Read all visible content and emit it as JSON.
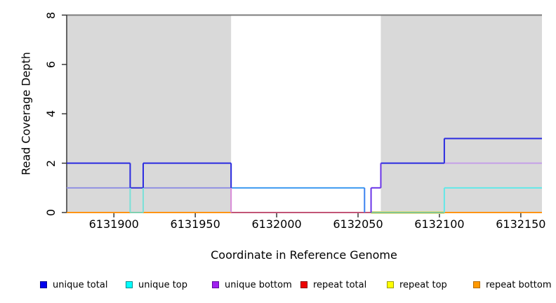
{
  "chart_data": {
    "type": "line",
    "subtype": "step-coverage",
    "title": "",
    "xlabel": "Coordinate in Reference Genome",
    "ylabel": "Read Coverage Depth",
    "xlim": [
      6131871,
      6132163
    ],
    "ylim": [
      0,
      8
    ],
    "xticks": [
      6131900,
      6131950,
      6132000,
      6132050,
      6132100,
      6132150
    ],
    "xtick_labels": [
      "6131900",
      "6131950",
      "6132000",
      "6132050",
      "6132100",
      "6132150"
    ],
    "yticks": [
      0,
      2,
      4,
      6,
      8
    ],
    "ytick_labels": [
      "0",
      "2",
      "4",
      "6",
      "8"
    ],
    "grid": false,
    "legend_position": "bottom-horizontal",
    "shade_color": "#d9d9d9",
    "shaded_regions": [
      {
        "x1": 6131871,
        "x2": 6131972
      },
      {
        "x1": 6132064,
        "x2": 6132163
      }
    ],
    "top_boundary_line": {
      "y": 8,
      "color": "#7d7d7d"
    },
    "series": [
      {
        "name": "unique total",
        "color": "#0000ee",
        "points": [
          [
            6131871,
            2
          ],
          [
            6131910,
            2
          ],
          [
            6131910,
            1
          ],
          [
            6131918,
            1
          ],
          [
            6131918,
            2
          ],
          [
            6131972,
            2
          ],
          [
            6131972,
            1
          ],
          [
            6132054,
            1
          ],
          [
            6132054,
            0
          ],
          [
            6132058,
            0
          ],
          [
            6132058,
            1
          ],
          [
            6132064,
            1
          ],
          [
            6132064,
            2
          ],
          [
            6132103,
            2
          ],
          [
            6132103,
            3
          ],
          [
            6132163,
            3
          ]
        ]
      },
      {
        "name": "unique top",
        "color": "#00ffff",
        "points": [
          [
            6131871,
            1
          ],
          [
            6131910,
            1
          ],
          [
            6131910,
            0
          ],
          [
            6131918,
            0
          ],
          [
            6131918,
            1
          ],
          [
            6132054,
            1
          ],
          [
            6132054,
            0
          ],
          [
            6132103,
            0
          ],
          [
            6132103,
            1
          ],
          [
            6132163,
            1
          ]
        ]
      },
      {
        "name": "unique bottom",
        "color": "#a020f0",
        "points": [
          [
            6131871,
            1
          ],
          [
            6131972,
            1
          ],
          [
            6131972,
            0
          ],
          [
            6132058,
            0
          ],
          [
            6132058,
            1
          ],
          [
            6132064,
            1
          ],
          [
            6132064,
            2
          ],
          [
            6132163,
            2
          ]
        ]
      },
      {
        "name": "repeat total",
        "color": "#ee0000",
        "points": [
          [
            6131871,
            0
          ],
          [
            6132163,
            0
          ]
        ]
      },
      {
        "name": "repeat top",
        "color": "#ffff00",
        "points": [
          [
            6131871,
            0
          ],
          [
            6132163,
            0
          ]
        ]
      },
      {
        "name": "repeat bottom",
        "color": "#ff9900",
        "points": [
          [
            6131871,
            0
          ],
          [
            6132163,
            0
          ]
        ]
      }
    ],
    "drawn_segments": [
      {
        "x1": 6131871,
        "x2": 6131972,
        "d1": 0,
        "d2": 0,
        "c": "#ff9414",
        "w": 2
      },
      {
        "x1": 6132103,
        "x2": 6132163,
        "d1": 0,
        "d2": 0,
        "c": "#ff9414",
        "w": 2
      },
      {
        "x1": 6131972,
        "x2": 6132058,
        "d1": 0,
        "d2": 0,
        "c": "#c25577",
        "w": 2
      },
      {
        "x1": 6132058,
        "x2": 6132103,
        "d1": 0,
        "d2": 0,
        "c": "#e3de8d",
        "w": 4
      },
      {
        "x1": 6132058,
        "x2": 6132103,
        "d1": 0,
        "d2": 0,
        "c": "#82c58e",
        "w": 2
      },
      {
        "x1": 6131910,
        "x2": 6131918,
        "d1": 0,
        "d2": 0,
        "c": "#7fd0b0",
        "w": 2
      },
      {
        "x1": 6131871,
        "x2": 6131972,
        "d1": 1,
        "d2": 1,
        "c": "#9191e2",
        "w": 2
      },
      {
        "x1": 6131972,
        "x2": 6132054,
        "d1": 1,
        "d2": 1,
        "c": "#3d9af0",
        "w": 2
      },
      {
        "x1": 6132058,
        "x2": 6132064,
        "d1": 1,
        "d2": 1,
        "c": "#6a35e8",
        "w": 2
      },
      {
        "x1": 6132103,
        "x2": 6132163,
        "d1": 2,
        "d2": 2,
        "c": "#c49fe8",
        "w": 2
      },
      {
        "x1": 6132103,
        "x2": 6132163,
        "d1": 1,
        "d2": 1,
        "c": "#63e8e8",
        "w": 2
      },
      {
        "x1": 6131871,
        "x2": 6131910,
        "d1": 2,
        "d2": 2,
        "c": "#2a2ae0",
        "w": 2
      },
      {
        "x1": 6131910,
        "x2": 6131918,
        "d1": 1,
        "d2": 1,
        "c": "#3b3bd6",
        "w": 2
      },
      {
        "x1": 6131918,
        "x2": 6131972,
        "d1": 2,
        "d2": 2,
        "c": "#2a2ae0",
        "w": 2
      },
      {
        "x1": 6132064,
        "x2": 6132103,
        "d1": 2,
        "d2": 2,
        "c": "#2a2ae0",
        "w": 2
      },
      {
        "x1": 6132103,
        "x2": 6132163,
        "d1": 3,
        "d2": 3,
        "c": "#2a2ae0",
        "w": 2
      },
      {
        "x1": 6131910,
        "x2": 6131910,
        "d1": 0,
        "d2": 1,
        "c": "#7ae0d8",
        "w": 2
      },
      {
        "x1": 6131918,
        "x2": 6131918,
        "d1": 0,
        "d2": 1,
        "c": "#7ae0d8",
        "w": 2
      },
      {
        "x1": 6131910,
        "x2": 6131910,
        "d1": 1,
        "d2": 2,
        "c": "#2a2ae0",
        "w": 2
      },
      {
        "x1": 6131918,
        "x2": 6131918,
        "d1": 1,
        "d2": 2,
        "c": "#2a2ae0",
        "w": 2
      },
      {
        "x1": 6131972,
        "x2": 6131972,
        "d1": 0,
        "d2": 1,
        "c": "#d98ad8",
        "w": 2
      },
      {
        "x1": 6131972,
        "x2": 6131972,
        "d1": 1,
        "d2": 2,
        "c": "#2a2ae0",
        "w": 2
      },
      {
        "x1": 6132054,
        "x2": 6132054,
        "d1": 0,
        "d2": 1,
        "c": "#3b82f0",
        "w": 2
      },
      {
        "x1": 6132058,
        "x2": 6132058,
        "d1": 0,
        "d2": 1,
        "c": "#6a35e8",
        "w": 2
      },
      {
        "x1": 6132064,
        "x2": 6132064,
        "d1": 1,
        "d2": 2,
        "c": "#6a35e8",
        "w": 2
      },
      {
        "x1": 6132103,
        "x2": 6132103,
        "d1": 0,
        "d2": 1,
        "c": "#63e8e8",
        "w": 2
      },
      {
        "x1": 6132103,
        "x2": 6132103,
        "d1": 2,
        "d2": 3,
        "c": "#2a2ae0",
        "w": 2
      }
    ]
  },
  "legend": {
    "items": [
      {
        "label": "unique total",
        "color": "#0000ee",
        "border": "#000090"
      },
      {
        "label": "unique top",
        "color": "#00ffff",
        "border": "#008b8b"
      },
      {
        "label": "unique bottom",
        "color": "#a020f0",
        "border": "#5d0b9e"
      },
      {
        "label": "repeat total",
        "color": "#ee0000",
        "border": "#8b0000"
      },
      {
        "label": "repeat top",
        "color": "#ffff00",
        "border": "#9b9b00"
      },
      {
        "label": "repeat bottom",
        "color": "#ff9900",
        "border": "#b36b00"
      }
    ]
  },
  "axis_style": {
    "axis_color": "#2b2b2b",
    "text_color": "#000000"
  }
}
